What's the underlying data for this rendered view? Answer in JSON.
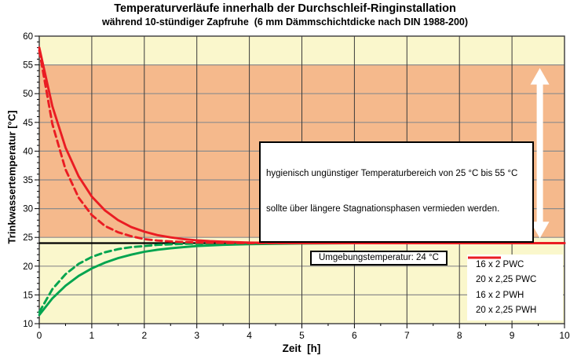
{
  "chart_data": {
    "type": "line",
    "title": "Temperaturverläufe innerhalb der Durchschleif-Ringinstallation",
    "subtitle": "während 10-stündiger Zapfruhe  (6 mm Dämmschichtdicke nach DIN 1988-200)",
    "xlabel": "Zeit  [h]",
    "ylabel": "Trinkwassertemperatur [°C]",
    "xlim": [
      0,
      10
    ],
    "ylim": [
      10,
      60
    ],
    "x_ticks": [
      0,
      1,
      2,
      3,
      4,
      5,
      6,
      7,
      8,
      9,
      10
    ],
    "y_ticks": [
      10,
      15,
      20,
      25,
      30,
      35,
      40,
      45,
      50,
      55,
      60
    ],
    "x_minor_step": 0.5,
    "y_minor_step": 1,
    "grid": true,
    "legend_position": "bottom-right",
    "band": {
      "from": 25,
      "to": 55
    },
    "ambient_line": {
      "value": 24,
      "label": "Umgebungstemperatur: 24 °C"
    },
    "annotations": {
      "range_note_line1": "hygienisch ungünstiger Temperaturbereich von 25 °C bis 55 °C",
      "range_note_line2": "sollte über längere Stagnationsphasen vermieden werden.",
      "range_arrow": {
        "from": 25,
        "to": 55,
        "x": 9.53
      }
    },
    "series": [
      {
        "name": "16 x 2 PWC",
        "color": "#00A44F",
        "dash": true,
        "points": [
          [
            0,
            12
          ],
          [
            0.25,
            16
          ],
          [
            0.5,
            18.6
          ],
          [
            0.75,
            20.4
          ],
          [
            1,
            21.6
          ],
          [
            1.25,
            22.4
          ],
          [
            1.5,
            22.95
          ],
          [
            1.75,
            23.3
          ],
          [
            2,
            23.5
          ],
          [
            2.25,
            23.7
          ],
          [
            2.5,
            23.8
          ],
          [
            2.75,
            23.88
          ],
          [
            3,
            23.92
          ],
          [
            3.5,
            23.97
          ],
          [
            4,
            24
          ],
          [
            5,
            24
          ],
          [
            6,
            24
          ],
          [
            7,
            24
          ],
          [
            8,
            24
          ],
          [
            9,
            24
          ],
          [
            10,
            24
          ]
        ]
      },
      {
        "name": "20 x 2,25 PWC",
        "color": "#00A44F",
        "dash": false,
        "points": [
          [
            0,
            11.5
          ],
          [
            0.25,
            14.4
          ],
          [
            0.5,
            16.6
          ],
          [
            0.75,
            18.3
          ],
          [
            1,
            19.6
          ],
          [
            1.25,
            20.6
          ],
          [
            1.5,
            21.4
          ],
          [
            1.75,
            22
          ],
          [
            2,
            22.5
          ],
          [
            2.25,
            22.85
          ],
          [
            2.5,
            23.1
          ],
          [
            2.75,
            23.3
          ],
          [
            3,
            23.5
          ],
          [
            3.5,
            23.7
          ],
          [
            4,
            23.82
          ],
          [
            4.5,
            23.9
          ],
          [
            5,
            23.95
          ],
          [
            6,
            24
          ],
          [
            7,
            24
          ],
          [
            8,
            24
          ],
          [
            9,
            24
          ],
          [
            10,
            24
          ]
        ]
      },
      {
        "name": "16 x 2 PWH",
        "color": "#EA1C23",
        "dash": true,
        "points": [
          [
            0,
            57.5
          ],
          [
            0.25,
            44.7
          ],
          [
            0.5,
            36.8
          ],
          [
            0.75,
            31.9
          ],
          [
            1,
            28.9
          ],
          [
            1.25,
            27
          ],
          [
            1.5,
            25.9
          ],
          [
            1.75,
            25.2
          ],
          [
            2,
            24.7
          ],
          [
            2.25,
            24.45
          ],
          [
            2.5,
            24.3
          ],
          [
            2.75,
            24.2
          ],
          [
            3,
            24.1
          ],
          [
            3.5,
            24.05
          ],
          [
            4,
            24
          ],
          [
            5,
            24
          ],
          [
            6,
            24
          ],
          [
            7,
            24
          ],
          [
            8,
            24
          ],
          [
            9,
            24
          ],
          [
            10,
            24
          ]
        ]
      },
      {
        "name": "20 x 2,25 PWH",
        "color": "#EA1C23",
        "dash": false,
        "points": [
          [
            0,
            58
          ],
          [
            0.25,
            47.8
          ],
          [
            0.5,
            40.6
          ],
          [
            0.75,
            35.6
          ],
          [
            1,
            32.1
          ],
          [
            1.25,
            29.7
          ],
          [
            1.5,
            28
          ],
          [
            1.75,
            26.8
          ],
          [
            2,
            26
          ],
          [
            2.25,
            25.4
          ],
          [
            2.5,
            25
          ],
          [
            2.75,
            24.7
          ],
          [
            3,
            24.5
          ],
          [
            3.25,
            24.35
          ],
          [
            3.5,
            24.25
          ],
          [
            4,
            24.1
          ],
          [
            4.5,
            24.05
          ],
          [
            5,
            24
          ],
          [
            6,
            24
          ],
          [
            7,
            24
          ],
          [
            8,
            24
          ],
          [
            9,
            24
          ],
          [
            10,
            24
          ]
        ]
      }
    ]
  },
  "colors": {
    "plot_bg": "#FAF7CC",
    "band": "#F5B98C",
    "grid_h": "#8C8C8C",
    "grid_v": "#3A3A3A",
    "border": "#3A3A3A",
    "tick": "#000000",
    "ambient_line": "#000000",
    "arrow": "#FFFFFF"
  }
}
